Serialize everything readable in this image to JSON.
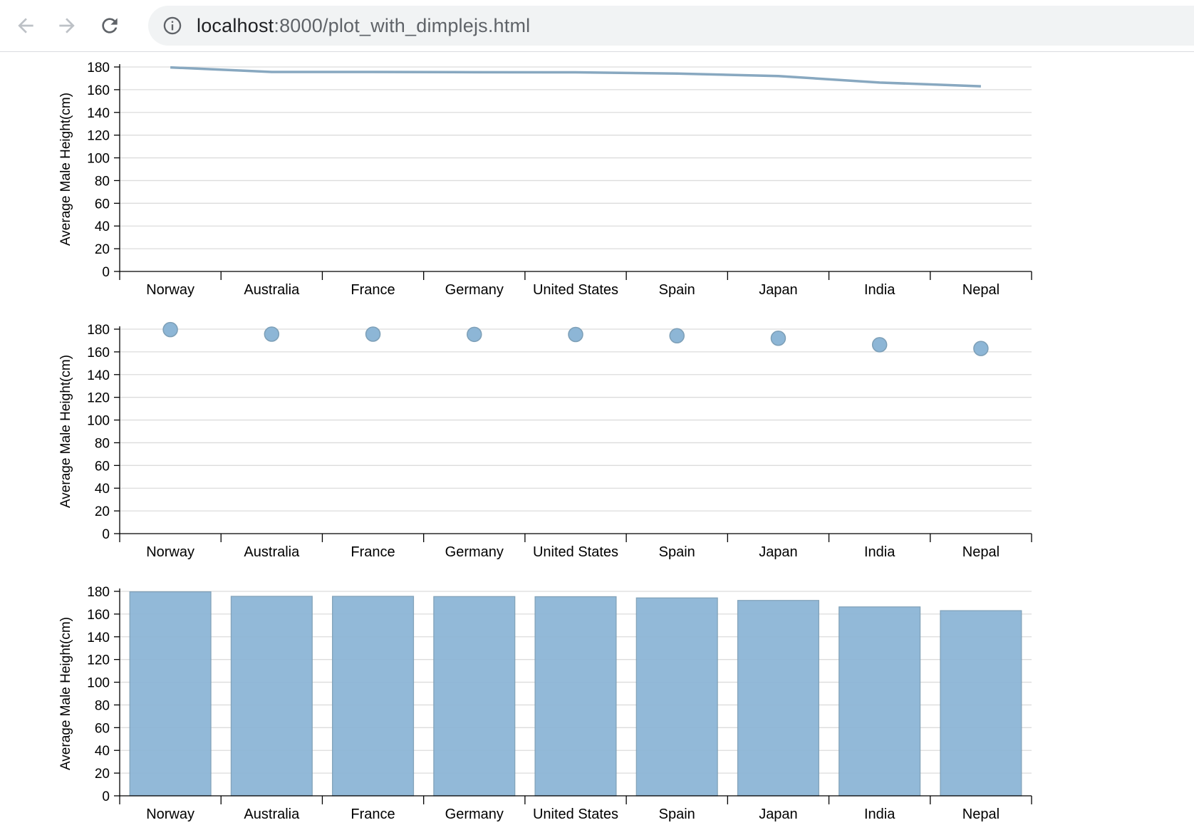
{
  "browser": {
    "url_host": "localhost",
    "url_rest": ":8000/plot_with_dimplejs.html",
    "icons": [
      "back-arrow-icon",
      "forward-arrow-icon",
      "reload-icon",
      "info-icon"
    ]
  },
  "colors": {
    "series_fill": "#8db6d6",
    "series_stroke": "#7d9fb7",
    "line": "#88a8c0",
    "grid": "#dcdcdc",
    "axis": "#000000"
  },
  "chart_data": [
    {
      "type": "line",
      "categories": [
        "Norway",
        "Australia",
        "France",
        "Germany",
        "United States",
        "Spain",
        "Japan",
        "India",
        "Nepal"
      ],
      "values": [
        179.6,
        175.6,
        175.6,
        175.4,
        175.3,
        174.2,
        172.0,
        166.3,
        163.0
      ],
      "ylabel": "Average Male Height(cm)",
      "ylim": [
        0,
        180
      ],
      "yticks": [
        0,
        20,
        40,
        60,
        80,
        100,
        120,
        140,
        160,
        180
      ],
      "grid": true
    },
    {
      "type": "scatter",
      "categories": [
        "Norway",
        "Australia",
        "France",
        "Germany",
        "United States",
        "Spain",
        "Japan",
        "India",
        "Nepal"
      ],
      "values": [
        179.6,
        175.6,
        175.6,
        175.4,
        175.3,
        174.2,
        172.0,
        166.3,
        163.0
      ],
      "ylabel": "Average Male Height(cm)",
      "ylim": [
        0,
        180
      ],
      "yticks": [
        0,
        20,
        40,
        60,
        80,
        100,
        120,
        140,
        160,
        180
      ],
      "grid": true
    },
    {
      "type": "bar",
      "categories": [
        "Norway",
        "Australia",
        "France",
        "Germany",
        "United States",
        "Spain",
        "Japan",
        "India",
        "Nepal"
      ],
      "values": [
        179.6,
        175.6,
        175.6,
        175.4,
        175.3,
        174.2,
        172.0,
        166.3,
        163.0
      ],
      "ylabel": "Average Male Height(cm)",
      "ylim": [
        0,
        180
      ],
      "yticks": [
        0,
        20,
        40,
        60,
        80,
        100,
        120,
        140,
        160,
        180
      ],
      "grid": true
    }
  ]
}
